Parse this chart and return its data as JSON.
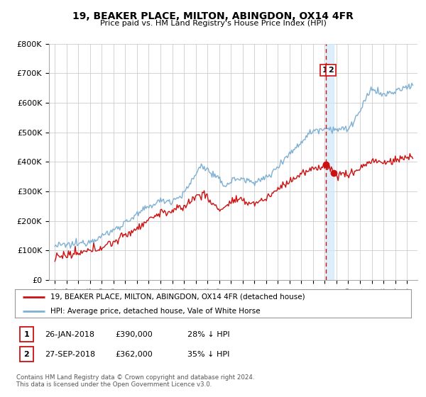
{
  "title": "19, BEAKER PLACE, MILTON, ABINGDON, OX14 4FR",
  "subtitle": "Price paid vs. HM Land Registry's House Price Index (HPI)",
  "ylim": [
    0,
    800000
  ],
  "yticks": [
    0,
    100000,
    200000,
    300000,
    400000,
    500000,
    600000,
    700000,
    800000
  ],
  "ytick_labels": [
    "£0",
    "£100K",
    "£200K",
    "£300K",
    "£400K",
    "£500K",
    "£600K",
    "£700K",
    "£800K"
  ],
  "hpi_color": "#7eb0d4",
  "price_color": "#cc1111",
  "vline_color": "#cc1111",
  "shade_color": "#d0e8f8",
  "background_color": "#ffffff",
  "grid_color": "#cccccc",
  "legend_entries": [
    "19, BEAKER PLACE, MILTON, ABINGDON, OX14 4FR (detached house)",
    "HPI: Average price, detached house, Vale of White Horse"
  ],
  "sale1_year": 2018.07,
  "sale1_price": 390000,
  "sale2_year": 2018.75,
  "sale2_price": 362000,
  "footer": "Contains HM Land Registry data © Crown copyright and database right 2024.\nThis data is licensed under the Open Government Licence v3.0.",
  "transaction_rows": [
    {
      "num": "1",
      "date": "26-JAN-2018",
      "price": "£390,000",
      "pct": "28% ↓ HPI"
    },
    {
      "num": "2",
      "date": "27-SEP-2018",
      "price": "£362,000",
      "pct": "35% ↓ HPI"
    }
  ]
}
